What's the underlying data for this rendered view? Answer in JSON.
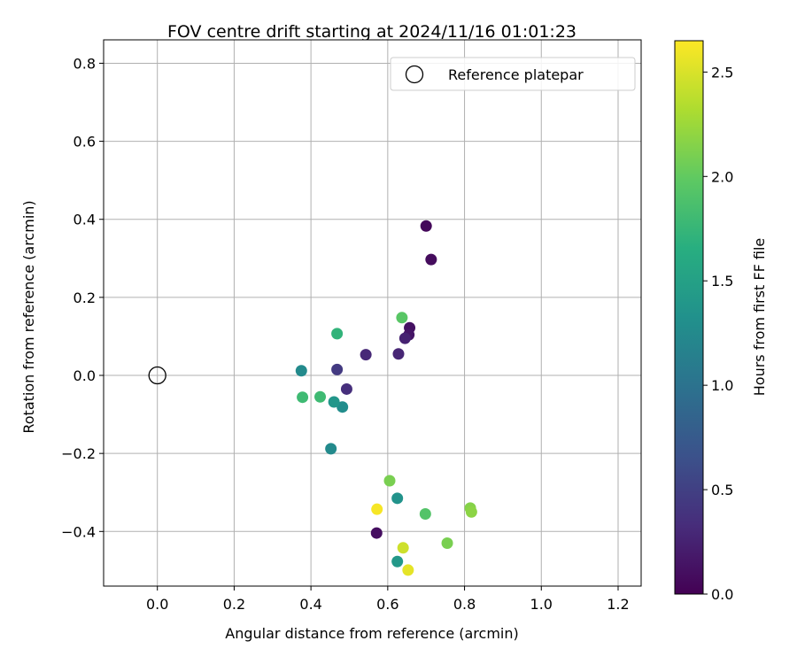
{
  "chart_data": {
    "type": "scatter",
    "title": "FOV centre drift starting at 2024/11/16 01:01:23",
    "xlabel": "Angular distance from reference (arcmin)",
    "ylabel": "Rotation from reference (arcmin)",
    "xlim": [
      -0.14,
      1.26
    ],
    "ylim": [
      -0.54,
      0.86
    ],
    "xticks": [
      0.0,
      0.2,
      0.4,
      0.6,
      0.8,
      1.0,
      1.2
    ],
    "yticks": [
      -0.4,
      -0.2,
      0.0,
      0.2,
      0.4,
      0.6,
      0.8
    ],
    "xtick_labels": [
      "0.0",
      "0.2",
      "0.4",
      "0.6",
      "0.8",
      "1.0",
      "1.2"
    ],
    "ytick_labels": [
      "−0.4",
      "−0.2",
      "0.0",
      "0.2",
      "0.4",
      "0.6",
      "0.8"
    ],
    "grid": true,
    "legend": {
      "placement": "top-right",
      "entries": [
        "Reference platepar"
      ]
    },
    "reference_point": {
      "x": 0.0,
      "y": 0.0
    },
    "colorbar": {
      "label": "Hours from first FF file",
      "colormap": "viridis",
      "range": [
        0.0,
        2.65
      ],
      "ticks": [
        0.0,
        0.5,
        1.0,
        1.5,
        2.0,
        2.5
      ],
      "tick_labels": [
        "0.0",
        "0.5",
        "1.0",
        "1.5",
        "2.0",
        "2.5"
      ]
    },
    "points": [
      {
        "x": 0.7,
        "y": 0.383,
        "hours": 0.05
      },
      {
        "x": 0.713,
        "y": 0.297,
        "hours": 0.08
      },
      {
        "x": 0.657,
        "y": 0.122,
        "hours": 0.12
      },
      {
        "x": 0.655,
        "y": 0.104,
        "hours": 0.15
      },
      {
        "x": 0.645,
        "y": 0.095,
        "hours": 0.25
      },
      {
        "x": 0.628,
        "y": 0.055,
        "hours": 0.28
      },
      {
        "x": 0.543,
        "y": 0.053,
        "hours": 0.3
      },
      {
        "x": 0.493,
        "y": -0.035,
        "hours": 0.35
      },
      {
        "x": 0.468,
        "y": 0.015,
        "hours": 0.45
      },
      {
        "x": 0.571,
        "y": -0.404,
        "hours": 0.1
      },
      {
        "x": 0.375,
        "y": 0.012,
        "hours": 1.25
      },
      {
        "x": 0.452,
        "y": -0.188,
        "hours": 1.25
      },
      {
        "x": 0.482,
        "y": -0.081,
        "hours": 1.28
      },
      {
        "x": 0.46,
        "y": -0.068,
        "hours": 1.38
      },
      {
        "x": 0.625,
        "y": -0.315,
        "hours": 1.35
      },
      {
        "x": 0.625,
        "y": -0.477,
        "hours": 1.4
      },
      {
        "x": 0.468,
        "y": 0.107,
        "hours": 1.72
      },
      {
        "x": 0.378,
        "y": -0.056,
        "hours": 1.8
      },
      {
        "x": 0.424,
        "y": -0.055,
        "hours": 1.8
      },
      {
        "x": 0.637,
        "y": 0.148,
        "hours": 1.95
      },
      {
        "x": 0.698,
        "y": -0.355,
        "hours": 1.92
      },
      {
        "x": 0.605,
        "y": -0.27,
        "hours": 2.1
      },
      {
        "x": 0.755,
        "y": -0.43,
        "hours": 2.1
      },
      {
        "x": 0.815,
        "y": -0.34,
        "hours": 2.15
      },
      {
        "x": 0.818,
        "y": -0.35,
        "hours": 2.18
      },
      {
        "x": 0.64,
        "y": -0.442,
        "hours": 2.45
      },
      {
        "x": 0.653,
        "y": -0.499,
        "hours": 2.55
      },
      {
        "x": 0.572,
        "y": -0.343,
        "hours": 2.62
      }
    ]
  }
}
